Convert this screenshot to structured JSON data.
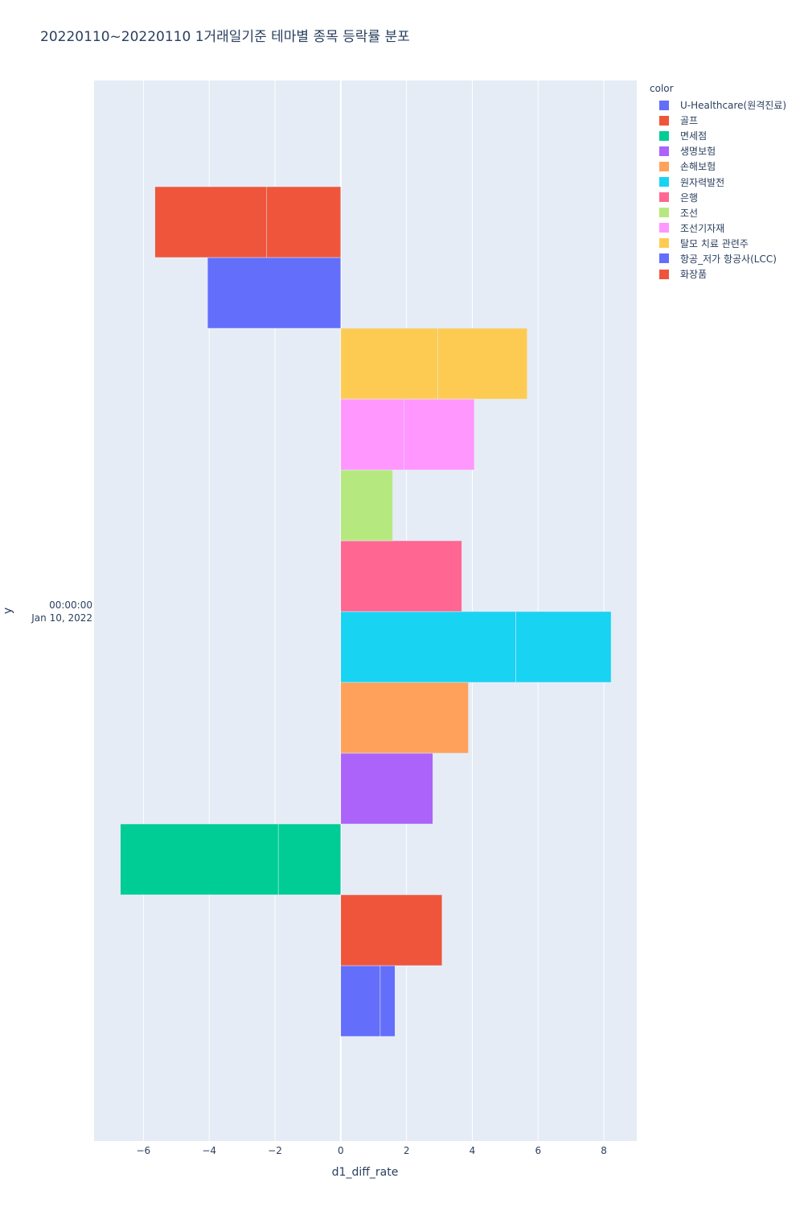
{
  "chart_data": {
    "type": "bar",
    "orientation": "horizontal",
    "barmode": "stack",
    "title": "20220110~20220110 1거래일기준 테마별 종목 등락률 분포",
    "xlabel": "d1_diff_rate",
    "ylabel": "y",
    "y_tick": [
      "00:00:00",
      "Jan 10, 2022"
    ],
    "xlim": [
      -7.5,
      9.0
    ],
    "x_ticks": [
      -6,
      -4,
      -2,
      0,
      2,
      4,
      6,
      8
    ],
    "x_tick_labels": [
      "−6",
      "−4",
      "−2",
      "0",
      "2",
      "4",
      "6",
      "8"
    ],
    "grid": true,
    "legend_position": "right",
    "legend_title": "color",
    "series": [
      {
        "name": "U-Healthcare(원격진료)",
        "color": "#636efa",
        "segments": [
          1.2,
          0.45
        ]
      },
      {
        "name": "골프",
        "color": "#EF553B",
        "segments": [
          3.08
        ]
      },
      {
        "name": "면세점",
        "color": "#00cc96",
        "segments": [
          -1.9,
          -4.8
        ]
      },
      {
        "name": "생명보험",
        "color": "#ab63fa",
        "segments": [
          2.8
        ]
      },
      {
        "name": "손해보험",
        "color": "#FFA15A",
        "segments": [
          3.88
        ]
      },
      {
        "name": "원자력발전",
        "color": "#19d3f3",
        "segments": [
          5.32,
          2.9
        ]
      },
      {
        "name": "은행",
        "color": "#FF6692",
        "segments": [
          3.68
        ]
      },
      {
        "name": "조선",
        "color": "#B6E880",
        "segments": [
          1.58
        ]
      },
      {
        "name": "조선기자재",
        "color": "#FF97FF",
        "segments": [
          1.93,
          2.13
        ]
      },
      {
        "name": "탈모 치료 관련주",
        "color": "#FECB52",
        "segments": [
          2.95,
          2.72
        ]
      },
      {
        "name": "항공_저가 항공사(LCC)",
        "color": "#636efa",
        "segments": [
          -4.05
        ]
      },
      {
        "name": "화장품",
        "color": "#EF553B",
        "segments": [
          -2.25,
          -3.4
        ]
      }
    ]
  }
}
